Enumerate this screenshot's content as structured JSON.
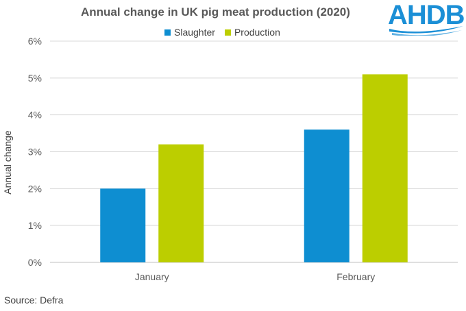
{
  "chart_data": {
    "type": "bar",
    "title": "Annual change in UK pig meat production (2020)",
    "categories": [
      "January",
      "February"
    ],
    "series": [
      {
        "name": "Slaughter",
        "values": [
          2.0,
          3.6
        ],
        "color": "#0e8ed1"
      },
      {
        "name": "Production",
        "values": [
          3.2,
          5.1
        ],
        "color": "#bcce00"
      }
    ],
    "xlabel": "",
    "ylabel": "Annual change",
    "ylim": [
      0,
      6
    ],
    "yticks": [
      "0%",
      "1%",
      "2%",
      "3%",
      "4%",
      "5%",
      "6%"
    ],
    "grid": true,
    "legend": "top-center"
  },
  "source": "Source: Defra",
  "logo": {
    "text": "AHDB",
    "color": "#1b8fd6"
  }
}
